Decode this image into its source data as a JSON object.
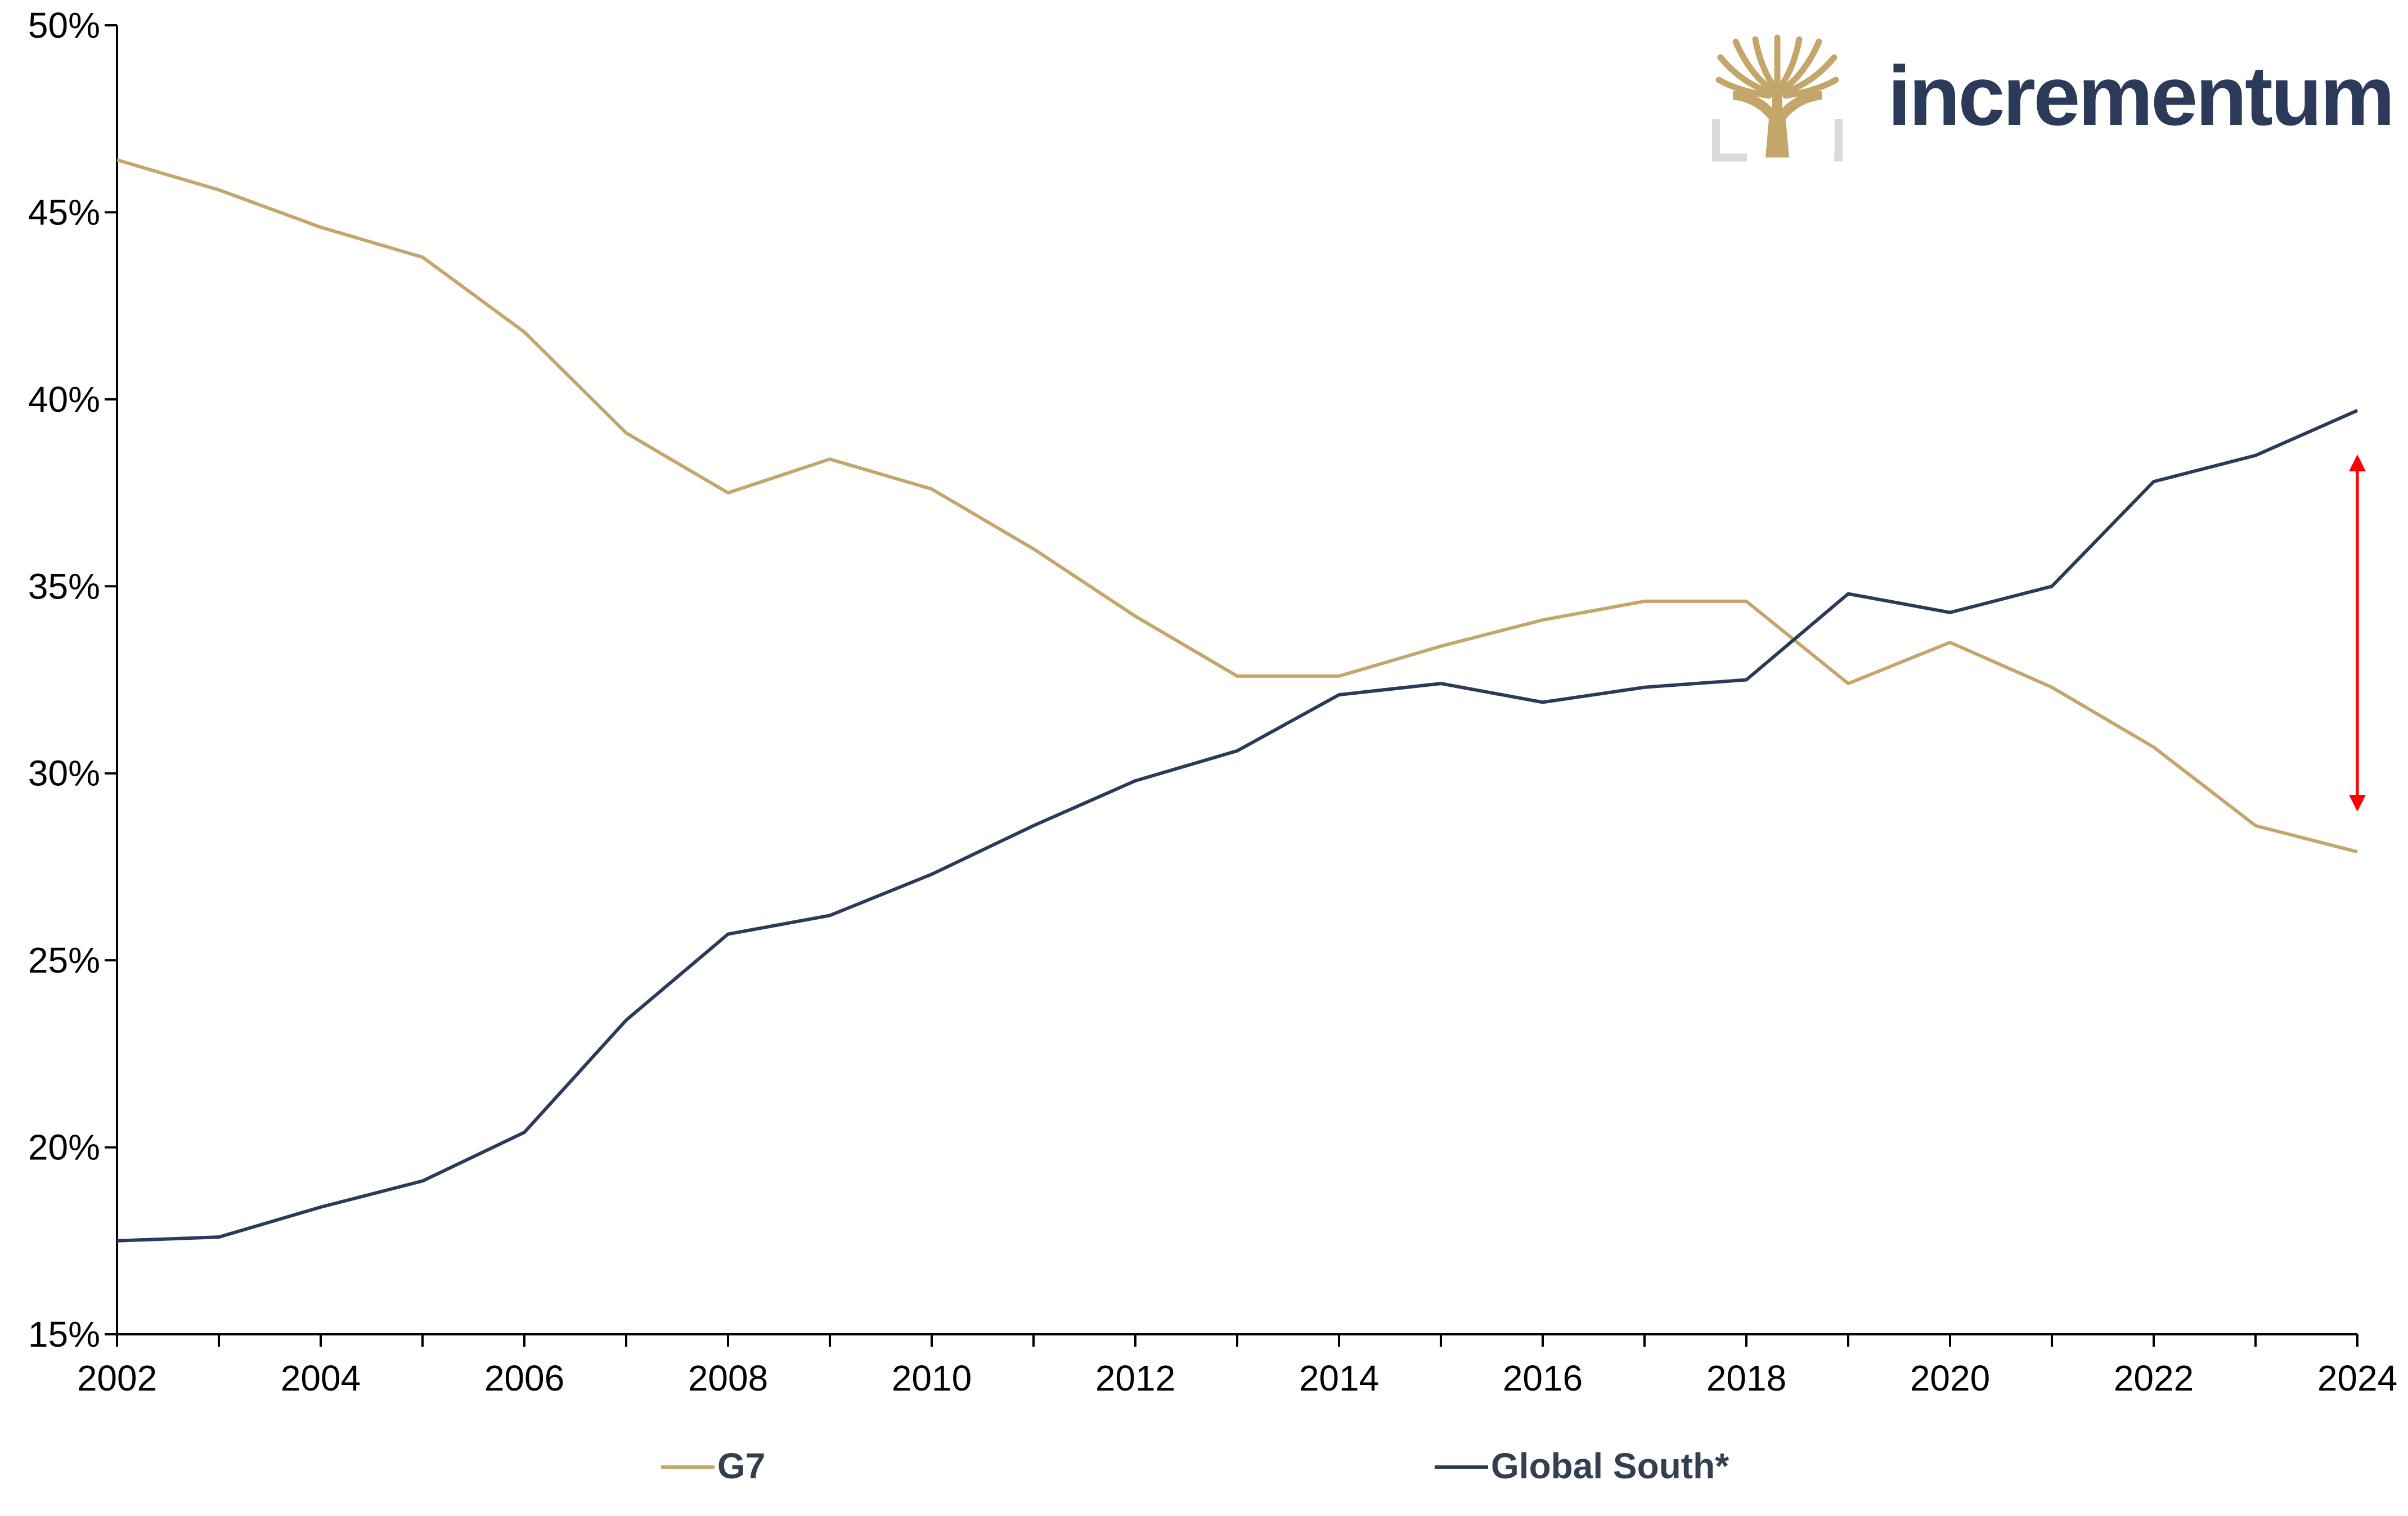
{
  "brand": {
    "name": "incrementum",
    "text_color": "#2c3a5a",
    "logo_color": "#c4a66a",
    "logo_frame_color": "#d9d9d9"
  },
  "chart_data": {
    "type": "line",
    "x": [
      2002,
      2003,
      2004,
      2005,
      2006,
      2007,
      2008,
      2009,
      2010,
      2011,
      2012,
      2013,
      2014,
      2015,
      2016,
      2017,
      2018,
      2019,
      2020,
      2021,
      2022,
      2023,
      2024
    ],
    "series": [
      {
        "name": "G7",
        "color": "#c4a66a",
        "values": [
          46.4,
          45.6,
          44.6,
          43.8,
          41.8,
          39.1,
          37.5,
          38.4,
          37.6,
          36.0,
          34.2,
          32.6,
          32.6,
          33.4,
          34.1,
          34.6,
          34.6,
          32.4,
          33.5,
          32.3,
          30.7,
          28.6,
          27.9
        ]
      },
      {
        "name": "Global South*",
        "color": "#2c3a5a",
        "values": [
          17.5,
          17.6,
          18.4,
          19.1,
          20.4,
          23.4,
          25.7,
          26.2,
          27.3,
          28.6,
          29.8,
          30.6,
          32.1,
          32.4,
          31.9,
          32.3,
          32.5,
          34.8,
          34.3,
          35.0,
          37.8,
          38.5,
          39.7
        ]
      }
    ],
    "ylim": [
      15,
      50
    ],
    "xlim": [
      2002,
      2024
    ],
    "y_ticks": [
      15,
      20,
      25,
      30,
      35,
      40,
      45,
      50
    ],
    "y_tick_labels": [
      "15%",
      "20%",
      "25%",
      "30%",
      "35%",
      "40%",
      "45%",
      "50%"
    ],
    "x_ticks": [
      2002,
      2004,
      2006,
      2008,
      2010,
      2012,
      2014,
      2016,
      2018,
      2020,
      2022,
      2024
    ],
    "x_tick_labels": [
      "2002",
      "2004",
      "2006",
      "2008",
      "2010",
      "2012",
      "2014",
      "2016",
      "2018",
      "2020",
      "2022",
      "2024"
    ],
    "grid": false,
    "legend": "bottom-center",
    "annotation": {
      "type": "double-arrow",
      "x": 2024,
      "y_from": 29.2,
      "y_to": 38.3,
      "color": "#ff0000"
    }
  }
}
